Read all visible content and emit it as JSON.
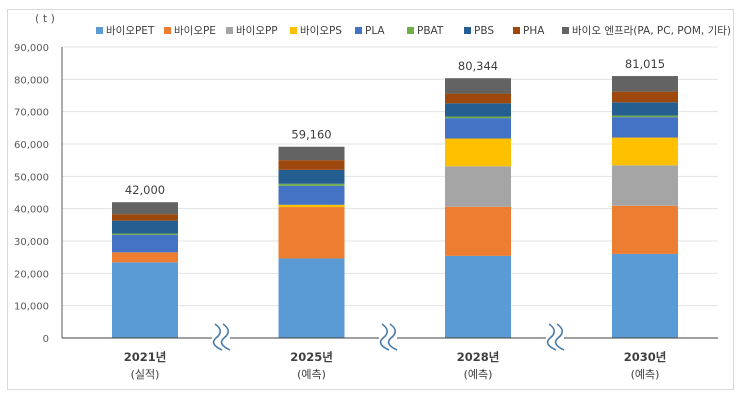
{
  "chart_data": {
    "type": "bar",
    "stacked": true,
    "title": "",
    "unit_label": "( t )",
    "xlabel": "",
    "ylabel": "",
    "ylim": [
      0,
      90000
    ],
    "yticks": [
      0,
      10000,
      20000,
      30000,
      40000,
      50000,
      60000,
      70000,
      80000,
      90000
    ],
    "ytick_labels": [
      "0",
      "10,000",
      "20,000",
      "30,000",
      "40,000",
      "50,000",
      "60,000",
      "70,000",
      "80,000",
      "90,000"
    ],
    "grid": true,
    "legend_position": "top",
    "categories": [
      {
        "year": "2021년",
        "note": "(실적)"
      },
      {
        "year": "2025년",
        "note": "(예측)"
      },
      {
        "year": "2028년",
        "note": "(예측)"
      },
      {
        "year": "2030년",
        "note": "(예측)"
      }
    ],
    "axis_break_marks": true,
    "totals": [
      "42,000",
      "59,160",
      "80,344",
      "81,015"
    ],
    "series": [
      {
        "name": "바이오PET",
        "color": "#5B9BD5",
        "values": [
          23400,
          24600,
          25400,
          26000
        ]
      },
      {
        "name": "바이오PE",
        "color": "#ED7D31",
        "values": [
          3100,
          15900,
          15200,
          14900
        ]
      },
      {
        "name": "바이오PP",
        "color": "#A5A5A5",
        "values": [
          0,
          0,
          12500,
          12500
        ]
      },
      {
        "name": "바이오PS",
        "color": "#FFC000",
        "values": [
          0,
          700,
          8600,
          8600
        ]
      },
      {
        "name": "PLA",
        "color": "#4472C4",
        "values": [
          5400,
          5900,
          6300,
          6300
        ]
      },
      {
        "name": "PBAT",
        "color": "#70AD47",
        "values": [
          400,
          600,
          500,
          500
        ]
      },
      {
        "name": "PBS",
        "color": "#255E91",
        "values": [
          4000,
          4300,
          4100,
          4100
        ]
      },
      {
        "name": "PHA",
        "color": "#9E480E",
        "values": [
          2000,
          3000,
          3000,
          3300
        ]
      },
      {
        "name": "바이오 엔프라(PA, PC, POM, 기타)",
        "color": "#636363",
        "values": [
          3700,
          4160,
          4744,
          4815
        ]
      }
    ]
  }
}
